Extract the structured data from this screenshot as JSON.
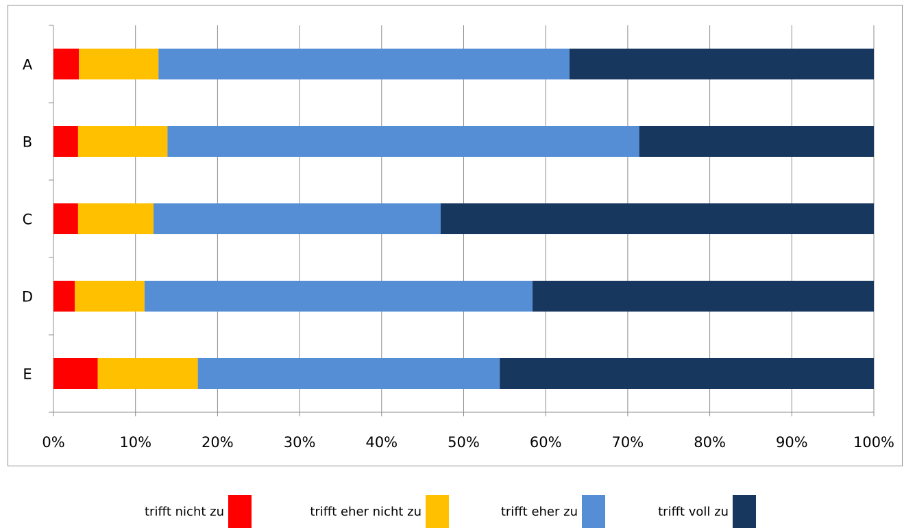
{
  "chart_data": {
    "type": "bar",
    "orientation": "horizontal",
    "stacked": "percent",
    "categories": [
      "A",
      "B",
      "C",
      "D",
      "E"
    ],
    "series": [
      {
        "name": "trifft nicht zu",
        "color": "#ff0000",
        "values": [
          3.1,
          3.0,
          3.0,
          2.6,
          5.4
        ]
      },
      {
        "name": "trifft eher nicht zu",
        "color": "#ffc000",
        "values": [
          9.7,
          10.9,
          9.2,
          8.5,
          12.2
        ]
      },
      {
        "name": "trifft eher zu",
        "color": "#558ed5",
        "values": [
          50.1,
          57.5,
          35.0,
          47.3,
          36.8
        ]
      },
      {
        "name": "trifft voll zu",
        "color": "#17375e",
        "values": [
          37.1,
          28.6,
          52.8,
          41.6,
          45.6
        ]
      }
    ],
    "xticks": [
      "0%",
      "10%",
      "20%",
      "30%",
      "40%",
      "50%",
      "60%",
      "70%",
      "80%",
      "90%",
      "100%"
    ],
    "xlim": [
      0,
      100
    ],
    "grid": true,
    "legend_position": "bottom"
  }
}
